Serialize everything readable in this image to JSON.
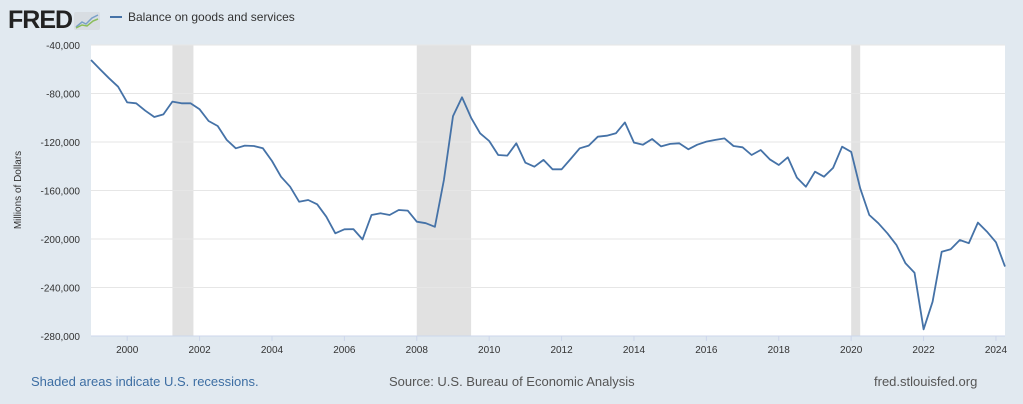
{
  "header": {
    "logo_text": "FRED",
    "legend_label": "Balance on goods and services"
  },
  "footer": {
    "recession_note": "Shaded areas indicate U.S. recessions.",
    "source": "Source: U.S. Bureau of Economic Analysis",
    "site": "fred.stlouisfed.org"
  },
  "colors": {
    "line": "#4572a7",
    "recession": "#e1e1e1",
    "background": "#e1e9f0",
    "grid": "#e6e6e6"
  },
  "chart_data": {
    "type": "line",
    "title": "Balance on goods and services",
    "xlabel": "",
    "ylabel": "Millions of Dollars",
    "xlim": [
      1999.0,
      2024.25
    ],
    "ylim": [
      -280000,
      -40000
    ],
    "grid": true,
    "legend_position": "top-left",
    "x_ticks": [
      2000,
      2002,
      2004,
      2006,
      2008,
      2010,
      2012,
      2014,
      2016,
      2018,
      2020,
      2022,
      2024
    ],
    "y_ticks": [
      -40000,
      -80000,
      -120000,
      -160000,
      -200000,
      -240000,
      -280000
    ],
    "y_tick_labels": [
      "-40,000",
      "-80,000",
      "-120,000",
      "-160,000",
      "-200,000",
      "-240,000",
      "-280,000"
    ],
    "x_tick_labels": [
      "2000",
      "2002",
      "2004",
      "2006",
      "2008",
      "2010",
      "2012",
      "2014",
      "2016",
      "2018",
      "2020",
      "2022",
      "2024"
    ],
    "recessions": [
      [
        2001.25,
        2001.83
      ],
      [
        2008.0,
        2009.5
      ],
      [
        2020.0,
        2020.25
      ]
    ],
    "frequency": "quarterly",
    "start": "1999-Q1",
    "series": [
      {
        "name": "Balance on goods and services",
        "values": [
          -52400,
          -60000,
          -67500,
          -74400,
          -87300,
          -88100,
          -94200,
          -99400,
          -97200,
          -86700,
          -88100,
          -88100,
          -93000,
          -102700,
          -106800,
          -118300,
          -125200,
          -123000,
          -123300,
          -125200,
          -135700,
          -148600,
          -156900,
          -169200,
          -167800,
          -171400,
          -181600,
          -195300,
          -192000,
          -191800,
          -200300,
          -180200,
          -178800,
          -180200,
          -176100,
          -176600,
          -185700,
          -187000,
          -189900,
          -151300,
          -98600,
          -83100,
          -100000,
          -112800,
          -119200,
          -130700,
          -131200,
          -121100,
          -137100,
          -140400,
          -134800,
          -142500,
          -142500,
          -134000,
          -125200,
          -123000,
          -115600,
          -114800,
          -112800,
          -103800,
          -120500,
          -122200,
          -117500,
          -123600,
          -121600,
          -121100,
          -126000,
          -122200,
          -119700,
          -118300,
          -117000,
          -123300,
          -124400,
          -130700,
          -126600,
          -134300,
          -139000,
          -132600,
          -149400,
          -156900,
          -144500,
          -148600,
          -141400,
          -123900,
          -128200,
          -158200,
          -180200,
          -187000,
          -195300,
          -204900,
          -220000,
          -227800,
          -274500,
          -251700,
          -210500,
          -208500,
          -200800,
          -203500,
          -186500,
          -193900,
          -202700,
          -222800
        ]
      }
    ]
  }
}
